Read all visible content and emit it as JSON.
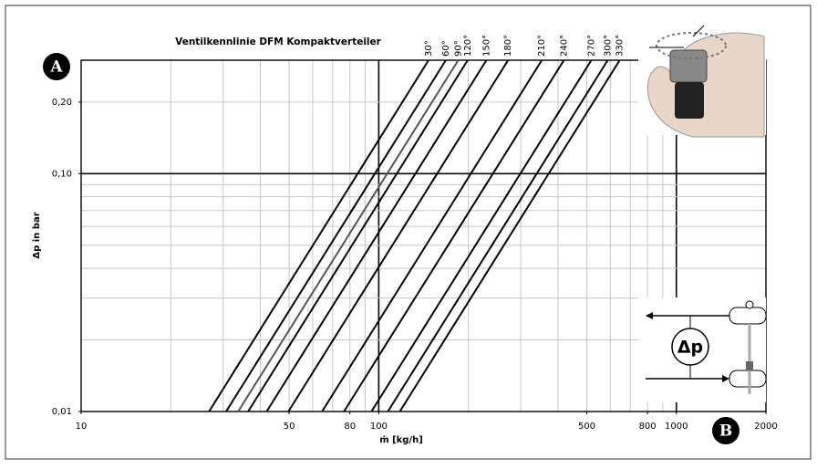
{
  "chart_data": {
    "type": "line",
    "title": "Ventilkennlinie DFM Kompaktverteiler",
    "xlabel": "ṁ [kg/h]",
    "ylabel": "Δp in bar",
    "xscale": "log",
    "yscale": "log",
    "grid": true,
    "xlim": [
      10,
      2000
    ],
    "ylim": [
      0.01,
      0.3
    ],
    "xticks": [
      10,
      50,
      80,
      100,
      500,
      800,
      1000,
      2000
    ],
    "yticks": [
      {
        "value": 0.01,
        "label": "0,01"
      },
      {
        "value": 0.1,
        "label": "0,10"
      },
      {
        "value": 0.2,
        "label": "0,20"
      }
    ],
    "annotations": [
      "A",
      "B",
      "Δp"
    ],
    "series": [
      {
        "name": "30°",
        "color": "#000000",
        "x": [
          26.9,
          147
        ],
        "values": [
          0.01,
          0.3
        ]
      },
      {
        "name": "60°",
        "color": "#000000",
        "x": [
          30.7,
          168
        ],
        "values": [
          0.01,
          0.3
        ]
      },
      {
        "name": "90°",
        "color": "#555555",
        "x": [
          33.7,
          185
        ],
        "values": [
          0.01,
          0.3
        ]
      },
      {
        "name": "120°",
        "color": "#000000",
        "x": [
          36.4,
          199
        ],
        "values": [
          0.01,
          0.3
        ]
      },
      {
        "name": "150°",
        "color": "#000000",
        "x": [
          42.0,
          230
        ],
        "values": [
          0.01,
          0.3
        ]
      },
      {
        "name": "180°",
        "color": "#000000",
        "x": [
          49.7,
          272
        ],
        "values": [
          0.01,
          0.3
        ]
      },
      {
        "name": "210°",
        "color": "#000000",
        "x": [
          64.5,
          353
        ],
        "values": [
          0.01,
          0.3
        ]
      },
      {
        "name": "240°",
        "color": "#000000",
        "x": [
          76.4,
          419
        ],
        "values": [
          0.01,
          0.3
        ]
      },
      {
        "name": "270°",
        "color": "#000000",
        "x": [
          94.5,
          518
        ],
        "values": [
          0.01,
          0.3
        ]
      },
      {
        "name": "300°",
        "color": "#000000",
        "x": [
          107.3,
          588
        ],
        "values": [
          0.01,
          0.3
        ]
      },
      {
        "name": "330°",
        "color": "#000000",
        "x": [
          117.7,
          645
        ],
        "values": [
          0.01,
          0.3
        ]
      }
    ]
  }
}
